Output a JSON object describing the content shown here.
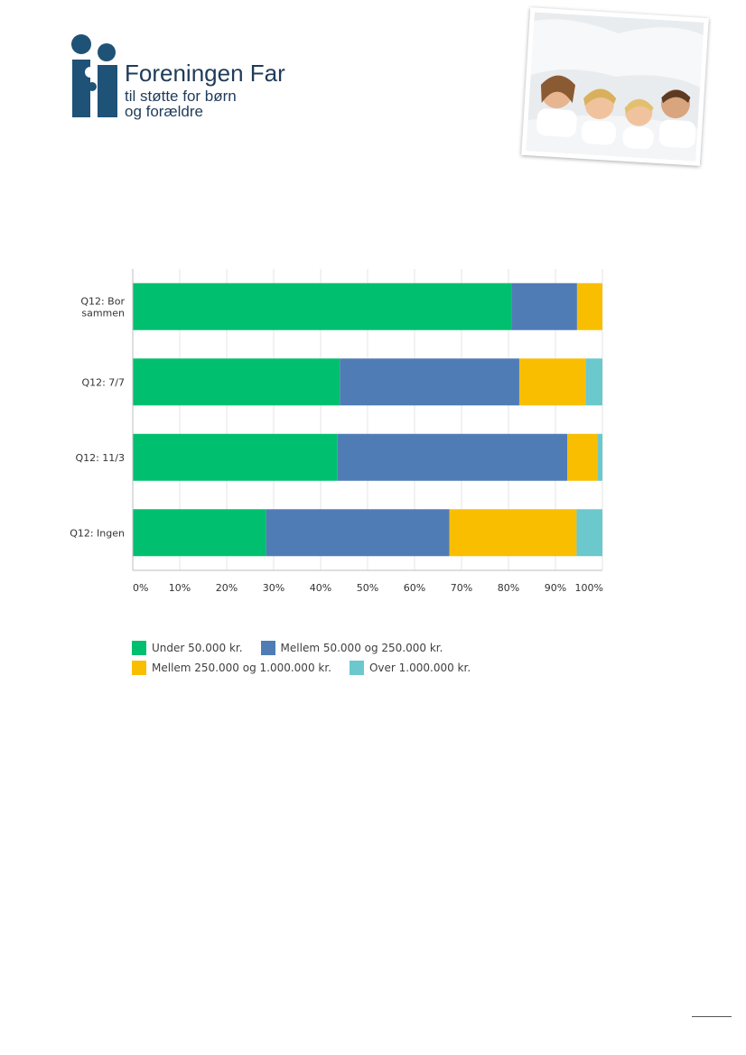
{
  "header": {
    "logo_name": "Foreningen Far",
    "logo_tagline_1": "til støtte for børn",
    "logo_tagline_2": "og forældre",
    "logo_color": "#1f5277",
    "photo_icon": "family-photo"
  },
  "chart_data": {
    "type": "bar",
    "orientation": "horizontal",
    "stacked": true,
    "percent_stacked": true,
    "categories": [
      "Q12: Bor sammen",
      "Q12: 7/7",
      "Q12: 11/3",
      "Q12: Ingen"
    ],
    "series": [
      {
        "name": "Under 50.000 kr.",
        "color": "#00bf6f",
        "values": [
          80.6,
          44.1,
          43.6,
          28.4
        ]
      },
      {
        "name": "Mellem 50.000 og 250.000 kr.",
        "color": "#507cb6",
        "values": [
          14.0,
          38.2,
          48.9,
          39.0
        ]
      },
      {
        "name": "Mellem 250.000 og 1.000.000 kr.",
        "color": "#f9be00",
        "values": [
          5.4,
          14.1,
          6.4,
          27.1
        ]
      },
      {
        "name": "Over 1.000.000 kr.",
        "color": "#6bc8cd",
        "values": [
          0.0,
          3.6,
          1.1,
          5.5
        ]
      }
    ],
    "xlim": [
      0,
      100
    ],
    "xticks": [
      "0%",
      "10%",
      "20%",
      "30%",
      "40%",
      "50%",
      "60%",
      "70%",
      "80%",
      "90%",
      "100%"
    ],
    "grid": true,
    "legend_position": "bottom"
  }
}
